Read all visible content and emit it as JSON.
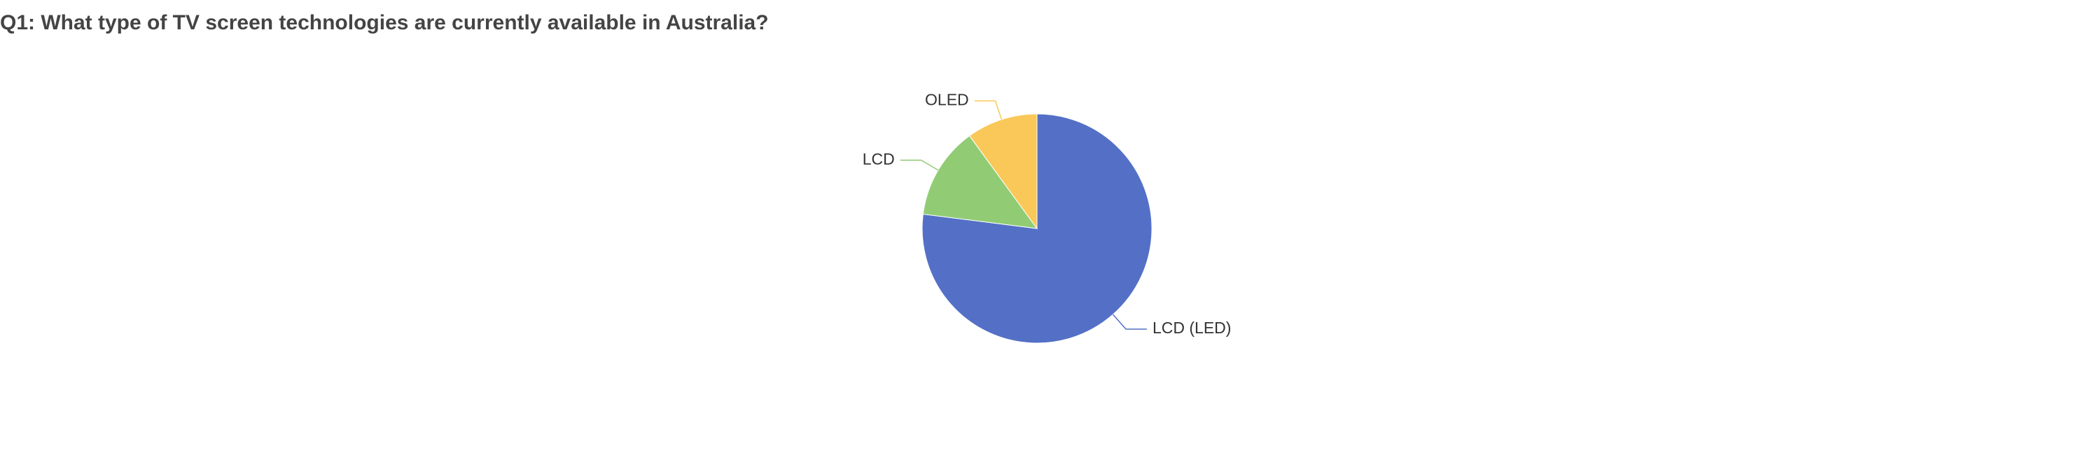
{
  "title": "Q1: What type of TV screen technologies are currently available in Australia?",
  "chart_data": {
    "type": "pie",
    "title": "Q1: What type of TV screen technologies are currently available in Australia?",
    "slices": [
      {
        "label": "LCD (LED)",
        "value": 77,
        "color": "#5470c6"
      },
      {
        "label": "LCD",
        "value": 13,
        "color": "#91cc75"
      },
      {
        "label": "OLED",
        "value": 10,
        "color": "#fac858"
      }
    ],
    "start_angle": "12 o'clock",
    "direction": "clockwise",
    "legend": "none",
    "labels": "outside with leader lines"
  }
}
